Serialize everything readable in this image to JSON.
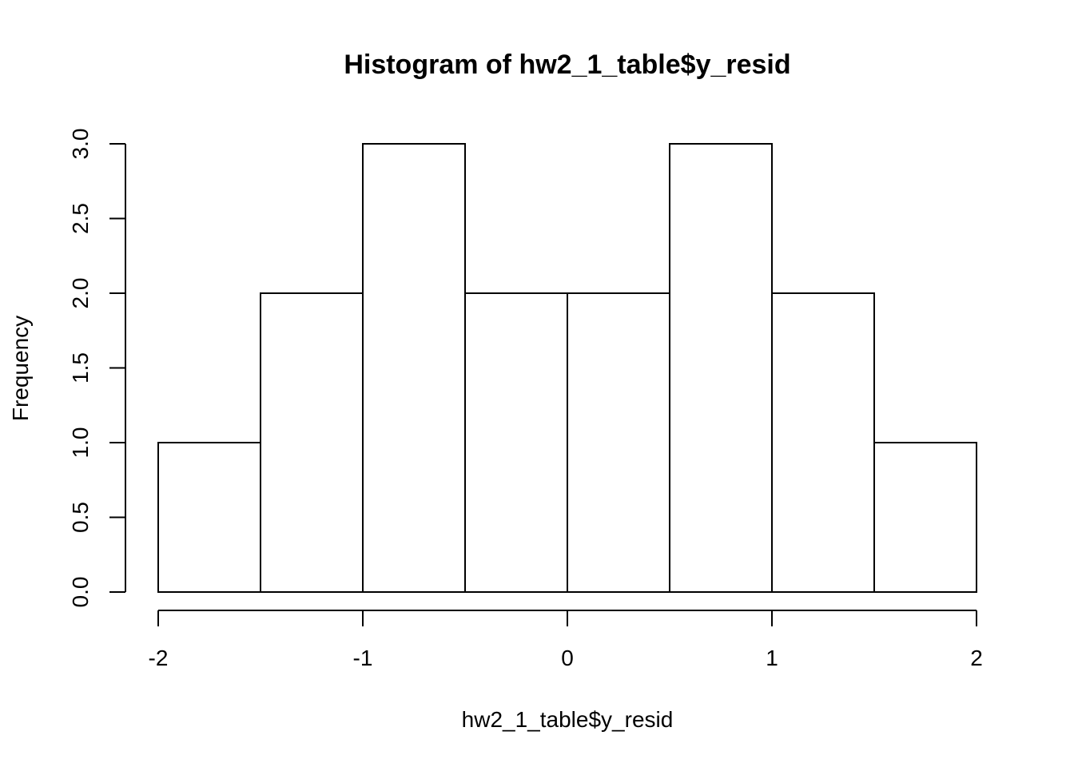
{
  "chart_data": {
    "type": "bar",
    "title": "Histogram of hw2_1_table$y_resid",
    "xlabel": "hw2_1_table$y_resid",
    "ylabel": "Frequency",
    "bins": [
      {
        "from": -2.0,
        "to": -1.5,
        "count": 1
      },
      {
        "from": -1.5,
        "to": -1.0,
        "count": 2
      },
      {
        "from": -1.0,
        "to": -0.5,
        "count": 3
      },
      {
        "from": -0.5,
        "to": 0.0,
        "count": 2
      },
      {
        "from": 0.0,
        "to": 0.5,
        "count": 2
      },
      {
        "from": 0.5,
        "to": 1.0,
        "count": 3
      },
      {
        "from": 1.0,
        "to": 1.5,
        "count": 2
      },
      {
        "from": 1.5,
        "to": 2.0,
        "count": 1
      }
    ],
    "x_ticks": [
      -2,
      -1,
      0,
      1,
      2
    ],
    "x_tick_labels": [
      "-2",
      "-1",
      "0",
      "1",
      "2"
    ],
    "y_ticks": [
      0.0,
      0.5,
      1.0,
      1.5,
      2.0,
      2.5,
      3.0
    ],
    "y_tick_labels": [
      "0.0",
      "0.5",
      "1.0",
      "1.5",
      "2.0",
      "2.5",
      "3.0"
    ],
    "xlim": [
      -2,
      2
    ],
    "ylim": [
      0,
      3
    ],
    "grid": false,
    "bar_fill": "#ffffff",
    "bar_stroke": "#000000"
  }
}
